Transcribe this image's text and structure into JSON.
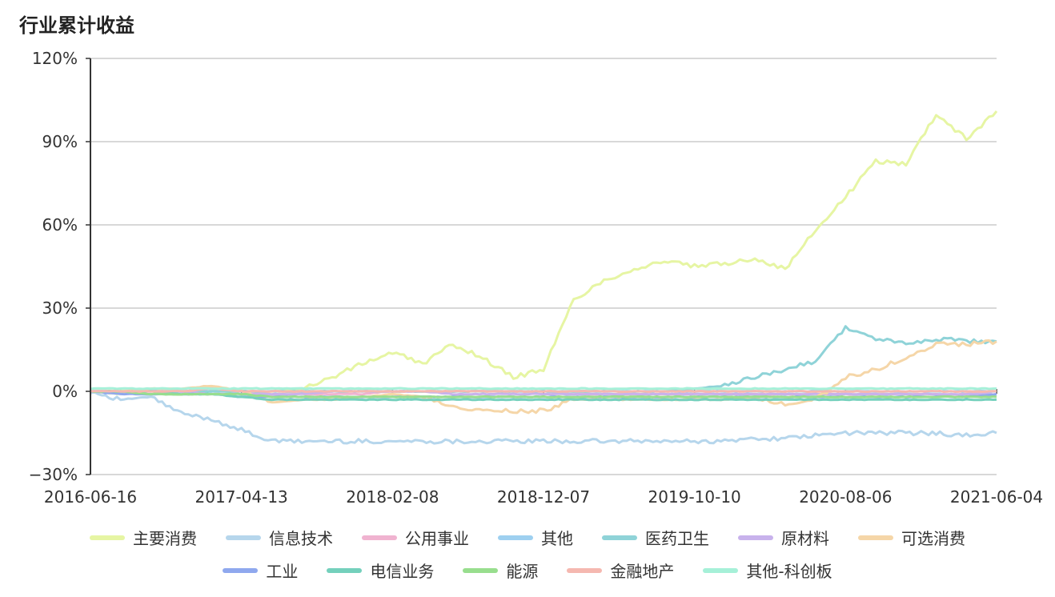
{
  "chart_data": {
    "type": "line",
    "title": "行业累计收益",
    "xlabel": "",
    "ylabel": "",
    "ylim": [
      -30,
      120
    ],
    "yticks": [
      "120%",
      "90%",
      "60%",
      "30%",
      "0%",
      "−30%"
    ],
    "ytick_values": [
      120,
      90,
      60,
      30,
      0,
      -30
    ],
    "xticks": [
      "2016-06-16",
      "2017-04-13",
      "2018-02-08",
      "2018-12-07",
      "2019-10-10",
      "2020-08-06",
      "2021-06-04"
    ],
    "x": [
      "2016-06-16",
      "2016-08-17",
      "2016-10-18",
      "2016-12-19",
      "2017-02-14",
      "2017-04-13",
      "2017-06-14",
      "2017-08-15",
      "2017-10-16",
      "2017-12-12",
      "2018-02-08",
      "2018-04-11",
      "2018-06-12",
      "2018-08-13",
      "2018-10-09",
      "2018-12-07",
      "2019-02-11",
      "2019-04-12",
      "2019-06-12",
      "2019-08-12",
      "2019-10-10",
      "2019-12-11",
      "2020-02-12",
      "2020-04-14",
      "2020-06-11",
      "2020-08-06",
      "2020-10-15",
      "2020-12-14",
      "2021-02-09",
      "2021-04-08",
      "2021-06-04"
    ],
    "grid": true,
    "legend_position": "bottom",
    "series": [
      {
        "name": "主要消费",
        "color": "#e6f5a3",
        "values": [
          0,
          -1,
          1,
          0,
          1,
          0,
          0,
          1,
          5,
          10,
          14,
          10,
          17,
          12,
          5,
          8,
          33,
          40,
          44,
          47,
          45,
          46,
          48,
          44,
          58,
          70,
          83,
          82,
          100,
          91,
          101
        ]
      },
      {
        "name": "信息技术",
        "color": "#b6d6ec",
        "values": [
          0,
          -3,
          -2,
          -8,
          -10,
          -14,
          -18,
          -18,
          -18,
          -18,
          -18,
          -18,
          -18,
          -18,
          -18,
          -18,
          -18,
          -18,
          -18,
          -18,
          -18,
          -18,
          -17,
          -17,
          -16,
          -15,
          -15,
          -15,
          -15,
          -16,
          -15
        ]
      },
      {
        "name": "公用事业",
        "color": "#f0b3d0",
        "values": [
          0,
          0,
          0,
          0,
          1,
          0,
          -1,
          -1,
          -1,
          -1,
          0,
          0,
          0,
          0,
          0,
          0,
          -1,
          -1,
          -1,
          -1,
          -1,
          -1,
          -1,
          -1,
          -1,
          -1,
          -1,
          -1,
          -1,
          -1,
          0
        ]
      },
      {
        "name": "其他",
        "color": "#9ed0f0",
        "values": [
          0,
          0,
          0,
          0,
          0,
          0,
          0,
          0,
          0,
          0,
          0,
          0,
          0,
          0,
          0,
          0,
          0,
          0,
          0,
          0,
          0,
          0,
          0,
          0,
          0,
          0,
          0,
          0,
          0,
          0,
          0
        ]
      },
      {
        "name": "医药卫生",
        "color": "#8fd3d8",
        "values": [
          0,
          0,
          0,
          0,
          0,
          0,
          0,
          0,
          0,
          0,
          0,
          0,
          0,
          0,
          0,
          0,
          0,
          0,
          0,
          0,
          1,
          2,
          5,
          8,
          11,
          23,
          19,
          17,
          19,
          18,
          18
        ]
      },
      {
        "name": "原材料",
        "color": "#c8b2ec",
        "values": [
          0,
          0,
          0,
          0,
          -1,
          -1,
          -1,
          -1,
          0,
          0,
          0,
          0,
          -1,
          -1,
          -1,
          -1,
          -1,
          -1,
          -1,
          -1,
          -1,
          -1,
          -1,
          -1,
          -1,
          -1,
          -1,
          -1,
          -1,
          -1,
          -1
        ]
      },
      {
        "name": "可选消费",
        "color": "#f5d6a8",
        "values": [
          0,
          0,
          1,
          1,
          2,
          0,
          -4,
          -3,
          -3,
          -2,
          -1,
          -2,
          -6,
          -7,
          -7,
          -7,
          -3,
          -3,
          -3,
          -3,
          -3,
          -3,
          -2,
          -5,
          -3,
          5,
          8,
          12,
          17,
          17,
          18
        ]
      },
      {
        "name": "工业",
        "color": "#8fa8ee",
        "values": [
          0,
          -1,
          -1,
          -1,
          -1,
          -2,
          -2,
          -2,
          -2,
          -2,
          -2,
          -2,
          -2,
          -2,
          -2,
          -2,
          -2,
          -2,
          -2,
          -2,
          -2,
          -2,
          -2,
          -2,
          -2,
          -2,
          -2,
          -2,
          -2,
          -2,
          -1
        ]
      },
      {
        "name": "电信业务",
        "color": "#74d0bc",
        "values": [
          0,
          0,
          0,
          -1,
          -1,
          -2,
          -3,
          -3,
          -3,
          -3,
          -3,
          -3,
          -3,
          -3,
          -3,
          -3,
          -3,
          -3,
          -3,
          -3,
          -3,
          -3,
          -3,
          -3,
          -3,
          -3,
          -3,
          -3,
          -3,
          -3,
          -3
        ]
      },
      {
        "name": "能源",
        "color": "#98de8e",
        "values": [
          0,
          0,
          -1,
          -1,
          -1,
          -1,
          -2,
          -2,
          -2,
          -2,
          -2,
          -2,
          -2,
          -2,
          -2,
          -2,
          -2,
          -2,
          -2,
          -2,
          -2,
          -2,
          -2,
          -2,
          -2,
          -2,
          -2,
          -2,
          -2,
          -2,
          -2
        ]
      },
      {
        "name": "金融地产",
        "color": "#f5b8b0",
        "values": [
          0,
          0,
          0,
          0,
          1,
          0,
          0,
          0,
          0,
          0,
          0,
          0,
          0,
          0,
          0,
          0,
          0,
          0,
          0,
          0,
          0,
          0,
          0,
          0,
          0,
          0,
          0,
          0,
          0,
          0,
          0
        ]
      },
      {
        "name": "其他-科创板",
        "color": "#a6f0d8",
        "values": [
          1,
          1,
          1,
          1,
          1,
          1,
          1,
          1,
          1,
          1,
          1,
          1,
          1,
          1,
          1,
          1,
          1,
          1,
          1,
          1,
          1,
          1,
          1,
          1,
          1,
          1,
          1,
          1,
          1,
          1,
          1
        ]
      }
    ]
  }
}
